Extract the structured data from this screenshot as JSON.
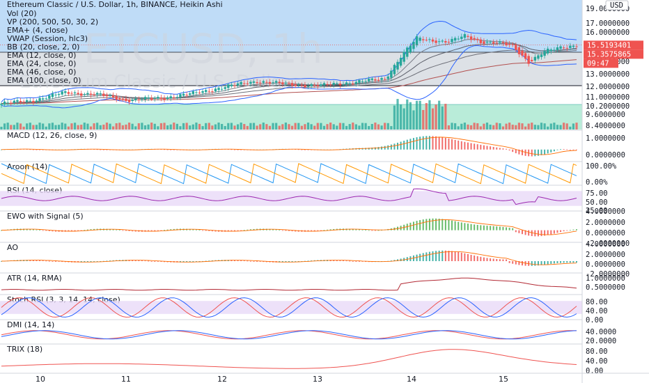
{
  "header": {
    "title": "Ethereum Classic / U.S. Dollar, 1h, BINANCE, Heikin Ashi",
    "studies": [
      "Vol (20)",
      "VP (200, 500, 50, 30, 2)",
      "EMA+ (4, close)",
      "VWAP (Session, hlc3)",
      "BB (20, close, 2, 0)",
      "EMA (12, close, 0)",
      "EMA (24, close, 0)",
      "EMA (46, close, 0)",
      "EMA (100, close, 0)"
    ]
  },
  "watermark": {
    "symbol": "ETCUSD, 1h",
    "name": "Ethereum Classic / U.S. Dollar"
  },
  "currency_button": "USD",
  "price_axis": {
    "labels": [
      "19.0000000",
      "17.0000000",
      "16.0000000",
      "14.0000000",
      "13.0000000",
      "12.0000000",
      "11.0000000",
      "10.2000000",
      "9.6000000",
      "8.4000000"
    ],
    "price_tag": "15.5193401",
    "ema_tag": "15.3575865",
    "countdown": "09:47"
  },
  "time_axis": {
    "labels": [
      "10",
      "11",
      "12",
      "13",
      "14",
      "15"
    ]
  },
  "panes": [
    {
      "key": "macd",
      "label": "MACD (12, 26, close, 9)",
      "ticks": [
        "1.0000000",
        "0.0000000"
      ]
    },
    {
      "key": "aroon",
      "label": "Aroon (14)",
      "ticks": [
        "100.00%",
        "0.00%"
      ]
    },
    {
      "key": "rsi",
      "label": "RSI (14, close)",
      "ticks": [
        "75.00",
        "50.00",
        "25.00"
      ]
    },
    {
      "key": "ewo",
      "label": "EWO with Signal (5)",
      "ticks": [
        "4.0000000",
        "2.0000000",
        "0.0000000",
        "-2.0000000"
      ]
    },
    {
      "key": "ao",
      "label": "AO",
      "ticks": [
        "4.0000000",
        "2.0000000",
        "0.0000000",
        "-2.0000000"
      ]
    },
    {
      "key": "atr",
      "label": "ATR (14, RMA)",
      "ticks": [
        "1.0000000",
        "0.5000000"
      ]
    },
    {
      "key": "stoch",
      "label": "Stoch RSI (3, 3, 14, 14, close)",
      "ticks": [
        "80.00",
        "40.00",
        "0.00"
      ]
    },
    {
      "key": "dmi",
      "label": "DMI (14, 14)",
      "ticks": [
        "40.0000",
        "20.0000"
      ]
    },
    {
      "key": "trix",
      "label": "TRIX (18)",
      "ticks": [
        "80.00",
        "40.00",
        "0.00"
      ]
    }
  ],
  "chart_data": {
    "type": "candlestick",
    "title": "Ethereum Classic / U.S. Dollar, 1h, BINANCE, Heikin Ashi",
    "x_labels": [
      "10",
      "11",
      "12",
      "13",
      "14",
      "15"
    ],
    "close_path": [
      [
        0,
        10.3
      ],
      [
        10,
        10.6
      ],
      [
        20,
        11.3
      ],
      [
        30,
        11.1
      ],
      [
        40,
        10.6
      ],
      [
        50,
        10.8
      ],
      [
        60,
        11.2
      ],
      [
        70,
        11.8
      ],
      [
        80,
        12.3
      ],
      [
        90,
        12.0
      ],
      [
        100,
        11.9
      ],
      [
        110,
        12.2
      ],
      [
        120,
        12.5
      ],
      [
        125,
        14.5
      ],
      [
        130,
        16.1
      ],
      [
        135,
        15.9
      ],
      [
        140,
        15.8
      ],
      [
        145,
        16.3
      ],
      [
        150,
        15.8
      ],
      [
        155,
        15.7
      ],
      [
        160,
        15.4
      ],
      [
        165,
        14.0
      ],
      [
        170,
        14.9
      ],
      [
        175,
        15.3
      ],
      [
        180,
        15.5
      ]
    ],
    "last_price": 15.5193401,
    "ema_last": 15.3575865,
    "ylim": [
      8.0,
      19.5
    ],
    "colors": {
      "up": "#26a69a",
      "down": "#ef5350",
      "bb": "#2962ff",
      "volume_up": "#26a69a",
      "volume_down": "#ef5350"
    }
  }
}
